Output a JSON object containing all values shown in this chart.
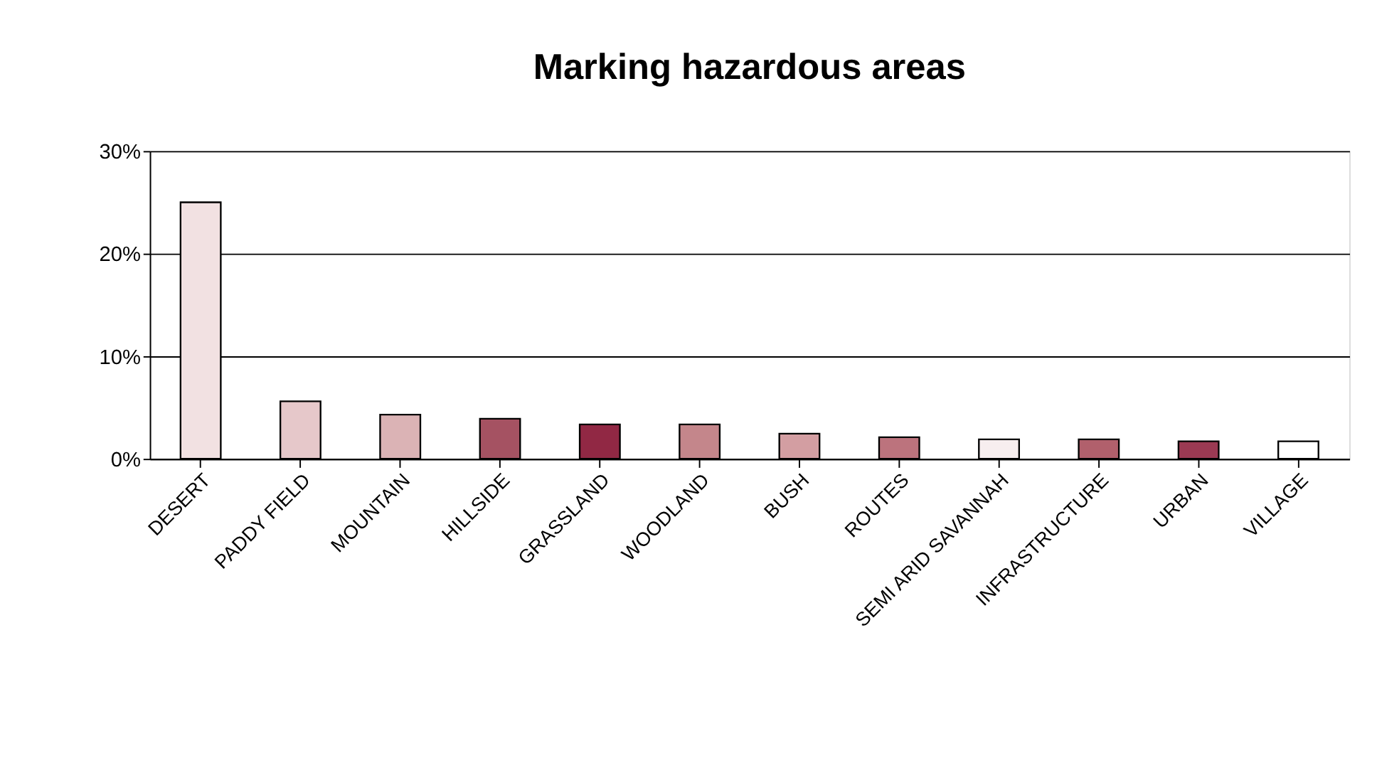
{
  "chart_data": {
    "type": "bar",
    "title": "Marking hazardous areas",
    "categories": [
      "DESERT",
      "PADDY FIELD",
      "MOUNTAIN",
      "HILLSIDE",
      "GRASSLAND",
      "WOODLAND",
      "BUSH",
      "ROUTES",
      "SEMI ARID SAVANNAH",
      "INFRASTRUCTURE",
      "URBAN",
      "VILLAGE"
    ],
    "values": [
      25,
      5.6,
      4.3,
      3.9,
      3.35,
      3.35,
      2.45,
      2.1,
      1.9,
      1.9,
      1.7,
      1.7
    ],
    "colors": [
      "#f2e1e2",
      "#e6c8ca",
      "#dbb3b5",
      "#a55262",
      "#912844",
      "#c4868b",
      "#d39ea2",
      "#bc737d",
      "#f7eeef",
      "#b1606c",
      "#9b3a53",
      "#ffffff"
    ],
    "ylim": [
      0,
      30
    ],
    "yticks": [
      {
        "value": 0,
        "label": "0%"
      },
      {
        "value": 10,
        "label": "10%"
      },
      {
        "value": 20,
        "label": "20%"
      },
      {
        "value": 30,
        "label": "30%"
      }
    ],
    "grid": "y",
    "legend": false
  }
}
